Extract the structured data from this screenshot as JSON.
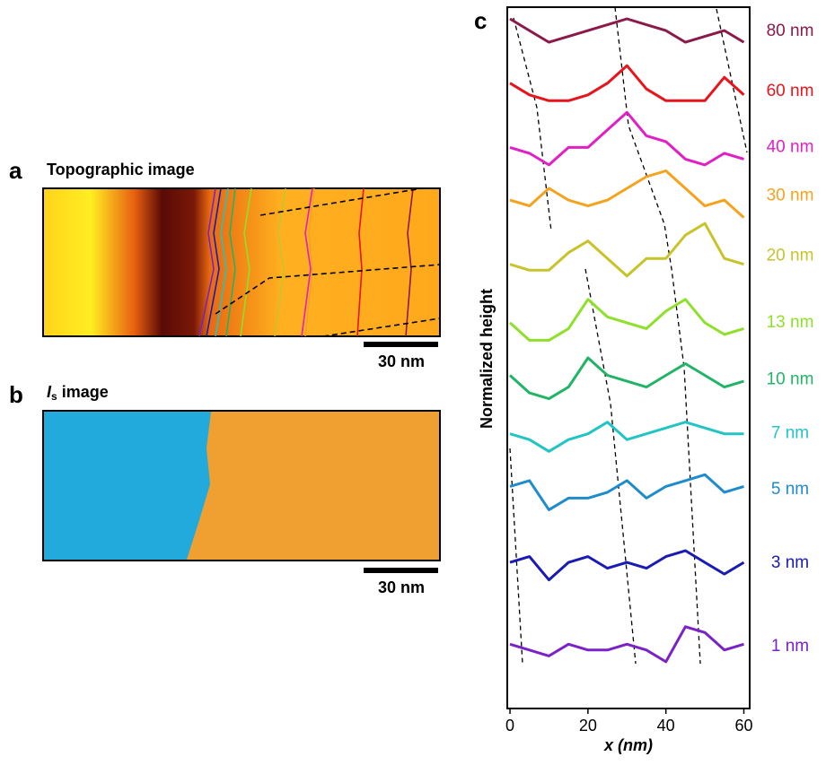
{
  "panel_a": {
    "label": "a",
    "title": "Topographic image",
    "scale_bar": "30 nm"
  },
  "panel_b": {
    "label": "b",
    "title_italic": "I",
    "title_sub": "s",
    "title_rest": " image",
    "scale_bar": "30 nm"
  },
  "chart_data": {
    "type": "line",
    "panel_label": "c",
    "ylabel": "Normalized height",
    "xlabel": "x (nm)",
    "x": [
      0,
      5,
      10,
      15,
      20,
      25,
      30,
      35,
      40,
      45,
      50,
      55,
      60
    ],
    "xlim": [
      -0.7,
      61.5
    ],
    "xticks": [
      0,
      20,
      40,
      60
    ],
    "ylim": [
      0,
      12
    ],
    "series": [
      {
        "name": "80 nm",
        "color": "#8b1a4a",
        "values": [
          11.8,
          11.6,
          11.4,
          11.5,
          11.6,
          11.7,
          11.8,
          11.7,
          11.6,
          11.4,
          11.5,
          11.6,
          11.4
        ]
      },
      {
        "name": "60 nm",
        "color": "#e8141c",
        "values": [
          10.7,
          10.5,
          10.4,
          10.4,
          10.5,
          10.7,
          11.0,
          10.6,
          10.4,
          10.4,
          10.4,
          10.8,
          10.5
        ]
      },
      {
        "name": "40 nm",
        "color": "#e21fc4",
        "values": [
          9.6,
          9.5,
          9.3,
          9.6,
          9.6,
          9.9,
          10.2,
          9.8,
          9.7,
          9.4,
          9.3,
          9.5,
          9.4
        ]
      },
      {
        "name": "30 nm",
        "color": "#f5a21c",
        "values": [
          8.7,
          8.6,
          8.9,
          8.7,
          8.6,
          8.7,
          8.9,
          9.1,
          9.2,
          8.9,
          8.6,
          8.7,
          8.4
        ]
      },
      {
        "name": "20 nm",
        "color": "#c8c32a",
        "values": [
          7.6,
          7.5,
          7.5,
          7.8,
          8.0,
          7.7,
          7.4,
          7.7,
          7.7,
          8.1,
          8.3,
          7.7,
          7.6
        ]
      },
      {
        "name": "13 nm",
        "color": "#8ee02a",
        "values": [
          6.6,
          6.3,
          6.3,
          6.5,
          7.0,
          6.7,
          6.6,
          6.5,
          6.8,
          7.0,
          6.6,
          6.4,
          6.5
        ]
      },
      {
        "name": "10 nm",
        "color": "#22b466",
        "values": [
          5.7,
          5.4,
          5.3,
          5.5,
          6.0,
          5.7,
          5.6,
          5.5,
          5.7,
          5.9,
          5.7,
          5.5,
          5.6
        ]
      },
      {
        "name": "7 nm",
        "color": "#22c4c4",
        "values": [
          4.7,
          4.6,
          4.4,
          4.6,
          4.7,
          4.9,
          4.6,
          4.7,
          4.8,
          4.9,
          4.8,
          4.7,
          4.7
        ]
      },
      {
        "name": "5 nm",
        "color": "#1e8ccc",
        "values": [
          3.8,
          3.9,
          3.4,
          3.6,
          3.6,
          3.7,
          3.9,
          3.6,
          3.8,
          3.9,
          4.0,
          3.7,
          3.8
        ]
      },
      {
        "name": "3 nm",
        "color": "#1a1ab4",
        "values": [
          2.5,
          2.6,
          2.2,
          2.5,
          2.6,
          2.4,
          2.5,
          2.4,
          2.6,
          2.7,
          2.5,
          2.3,
          2.5
        ]
      },
      {
        "name": "1 nm",
        "color": "#7a22c8",
        "values": [
          1.1,
          1.0,
          0.9,
          1.1,
          1.0,
          1.0,
          1.1,
          1.0,
          0.8,
          1.4,
          1.3,
          1.0,
          1.1
        ]
      }
    ]
  }
}
